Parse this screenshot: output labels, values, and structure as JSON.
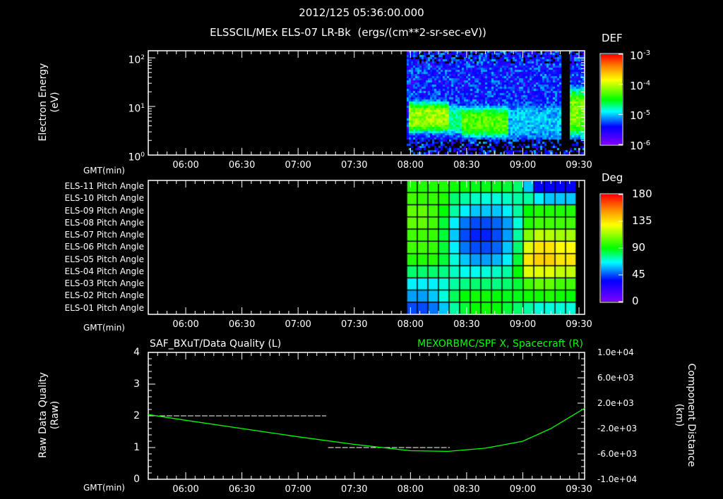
{
  "header": {
    "timestamp": "2012/125 05:36:00.000",
    "subtitle": "ELSSCIL/MEx ELS-07 LR-Bk  (ergs/(cm**2-sr-sec-eV))"
  },
  "colors": {
    "background": "#000000",
    "axis": "#ffffff",
    "green_series": "#00ff00"
  },
  "chart_data": [
    {
      "type": "heatmap",
      "name": "electron-spectrogram",
      "ylabel": [
        "Electron Energy",
        "(eV)"
      ],
      "xlabel": "GMT(min)",
      "x_ticks": [
        "06:00",
        "06:30",
        "07:00",
        "07:30",
        "08:00",
        "08:30",
        "09:00",
        "09:30"
      ],
      "xlim_minutes": [
        340,
        573
      ],
      "ylim": [
        1,
        140
      ],
      "yscale": "log",
      "y_ticks": [
        {
          "value": 100,
          "label": "10",
          "exp": "2"
        },
        {
          "value": 10,
          "label": "10",
          "exp": "1"
        },
        {
          "value": 1,
          "label": "10",
          "exp": "0"
        }
      ],
      "colorbar": {
        "title": "DEF",
        "range_log10": [
          -6,
          -3
        ],
        "ticks": [
          {
            "base": "10",
            "exp": "-3"
          },
          {
            "base": "10",
            "exp": "-4"
          },
          {
            "base": "10",
            "exp": "-5"
          },
          {
            "base": "10",
            "exp": "-6"
          }
        ]
      },
      "energy_flux_profile": [
        {
          "start": "07:58",
          "end": "08:20",
          "peak_log10_def": -4.1,
          "band_log10_eV": [
            0.55,
            1.05
          ]
        },
        {
          "start": "08:20",
          "end": "08:27",
          "peak_log10_def": -4.7,
          "band_log10_eV": [
            0.5,
            1.0
          ]
        },
        {
          "start": "08:27",
          "end": "08:52",
          "peak_log10_def": -4.3,
          "band_log10_eV": [
            0.45,
            0.95
          ]
        },
        {
          "start": "08:52",
          "end": "09:20",
          "peak_log10_def": -5.0,
          "band_log10_eV": [
            0.4,
            1.0
          ]
        },
        {
          "start": "09:20",
          "end": "09:24",
          "peak_log10_def": -9,
          "band_log10_eV": [
            0.5,
            1.0
          ]
        },
        {
          "start": "09:24",
          "end": "09:33",
          "peak_log10_def": -4.2,
          "band_log10_eV": [
            0.5,
            1.3
          ]
        }
      ]
    },
    {
      "type": "heatmap",
      "name": "pitch-angle",
      "xlabel": "GMT(min)",
      "x_ticks": [
        "06:00",
        "06:30",
        "07:00",
        "07:30",
        "08:00",
        "08:30",
        "09:00",
        "09:30"
      ],
      "rows": [
        "ELS-11 Pitch Angle",
        "ELS-10 Pitch Angle",
        "ELS-09 Pitch Angle",
        "ELS-08 Pitch Angle",
        "ELS-07 Pitch Angle",
        "ELS-06 Pitch Angle",
        "ELS-05 Pitch Angle",
        "ELS-04 Pitch Angle",
        "ELS-03 Pitch Angle",
        "ELS-02 Pitch Angle",
        "ELS-01 Pitch Angle"
      ],
      "time_start": "07:58",
      "time_end": "09:28",
      "colorbar": {
        "title": "Deg",
        "range": [
          0,
          180
        ],
        "ticks": [
          "180",
          "135",
          "90",
          "45",
          "0"
        ]
      },
      "values": [
        [
          95,
          95,
          95,
          95,
          92,
          90,
          88,
          88,
          88,
          85,
          80,
          60,
          35,
          35,
          35,
          35
        ],
        [
          100,
          98,
          98,
          95,
          80,
          75,
          72,
          70,
          70,
          72,
          75,
          75,
          65,
          60,
          60,
          60
        ],
        [
          105,
          105,
          100,
          90,
          75,
          65,
          60,
          60,
          60,
          65,
          75,
          90,
          95,
          95,
          95,
          95
        ],
        [
          105,
          105,
          100,
          85,
          65,
          50,
          45,
          45,
          48,
          55,
          70,
          95,
          100,
          100,
          100,
          100
        ],
        [
          100,
          100,
          98,
          85,
          60,
          45,
          40,
          40,
          45,
          55,
          75,
          110,
          120,
          118,
          115,
          115
        ],
        [
          100,
          100,
          98,
          85,
          65,
          50,
          45,
          45,
          48,
          60,
          80,
          125,
          135,
          135,
          130,
          130
        ],
        [
          95,
          95,
          95,
          85,
          70,
          60,
          55,
          55,
          58,
          65,
          85,
          135,
          140,
          140,
          135,
          135
        ],
        [
          80,
          80,
          80,
          78,
          72,
          68,
          68,
          70,
          72,
          75,
          90,
          125,
          125,
          125,
          120,
          120
        ],
        [
          65,
          65,
          65,
          70,
          75,
          78,
          80,
          80,
          78,
          80,
          85,
          100,
          105,
          105,
          100,
          100
        ],
        [
          55,
          55,
          60,
          70,
          82,
          90,
          92,
          92,
          90,
          88,
          88,
          92,
          92,
          95,
          92,
          90
        ],
        [
          45,
          45,
          50,
          60,
          75,
          85,
          90,
          92,
          90,
          85,
          80,
          75,
          70,
          70,
          70,
          70
        ]
      ]
    },
    {
      "type": "line",
      "name": "data-quality-and-distance",
      "left_title": "SAF_BXuT/Data Quality (L)",
      "right_title": "MEXORBMC/SPF X, Spacecraft (R)",
      "ylabel_left": [
        "Raw Data Quality",
        "(Raw)"
      ],
      "ylabel_right": [
        "Component Distance",
        "(km)"
      ],
      "xlabel": "GMT(min)",
      "x_ticks": [
        "06:00",
        "06:30",
        "07:00",
        "07:30",
        "08:00",
        "08:30",
        "09:00",
        "09:30"
      ],
      "ylim_left": [
        0,
        4
      ],
      "y_ticks_left": [
        "0",
        "1",
        "2",
        "3",
        "4"
      ],
      "ylim_right": [
        -10000,
        10000
      ],
      "y_ticks_right": [
        "1.0e+04",
        "6.0e+03",
        "2.0e+03",
        "-2.0e+03",
        "-6.0e+03",
        "-1.0e+04"
      ],
      "series": [
        {
          "name": "Data Quality",
          "axis": "left",
          "style": "dashed",
          "color": "#ffffff",
          "segments": [
            {
              "start": "05:46",
              "end": "07:15",
              "value": 2
            },
            {
              "start": "07:16",
              "end": "08:21",
              "value": 1
            },
            {
              "start": "08:22",
              "end": "09:27",
              "value": 0
            }
          ]
        },
        {
          "name": "SPF X",
          "axis": "right",
          "color": "#00ff00",
          "x": [
            "05:40",
            "06:00",
            "06:30",
            "07:00",
            "07:30",
            "08:00",
            "08:20",
            "08:40",
            "09:00",
            "09:15",
            "09:33"
          ],
          "y": [
            200,
            -700,
            -2000,
            -3300,
            -4500,
            -5500,
            -5600,
            -5100,
            -4000,
            -2000,
            1200
          ]
        }
      ]
    }
  ]
}
